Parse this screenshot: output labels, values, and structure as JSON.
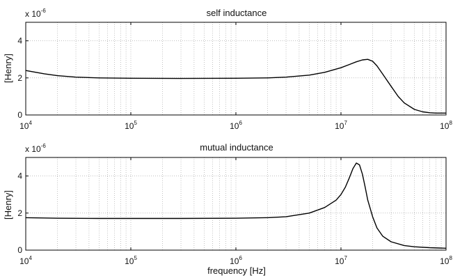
{
  "chart_data": [
    {
      "type": "line",
      "title": "self inductance",
      "ylabel": "[Henry]",
      "xlabel": "",
      "scale_label": "x 10",
      "scale_exp": "-6",
      "x_scale": "log",
      "xlim": [
        10000,
        100000000
      ],
      "ylim": [
        0,
        5
      ],
      "x_ticks": [
        {
          "value": 10000,
          "base": "10",
          "exp": "4"
        },
        {
          "value": 100000,
          "base": "10",
          "exp": "5"
        },
        {
          "value": 1000000,
          "base": "10",
          "exp": "6"
        },
        {
          "value": 10000000,
          "base": "10",
          "exp": "7"
        },
        {
          "value": 100000000,
          "base": "10",
          "exp": "8"
        }
      ],
      "y_ticks": [
        0,
        2,
        4
      ],
      "grid": true,
      "line_color": "#000000",
      "series": [
        {
          "x": [
            10000,
            15000,
            20000,
            30000,
            50000,
            100000,
            300000,
            1000000,
            2000000,
            3000000,
            5000000,
            7000000,
            10000000,
            12000000,
            14000000,
            16000000,
            18000000,
            20000000,
            22000000,
            25000000,
            30000000,
            35000000,
            40000000,
            50000000,
            60000000,
            70000000,
            80000000,
            100000000
          ],
          "y": [
            2.4,
            2.22,
            2.12,
            2.04,
            2.0,
            1.98,
            1.97,
            1.98,
            2.0,
            2.04,
            2.15,
            2.3,
            2.55,
            2.72,
            2.87,
            2.97,
            3.0,
            2.9,
            2.65,
            2.2,
            1.55,
            1.0,
            0.65,
            0.3,
            0.17,
            0.12,
            0.1,
            0.1
          ]
        }
      ]
    },
    {
      "type": "line",
      "title": "mutual inductance",
      "ylabel": "[Henry]",
      "xlabel": "frequency [Hz]",
      "scale_label": "x 10",
      "scale_exp": "-6",
      "x_scale": "log",
      "xlim": [
        10000,
        100000000
      ],
      "ylim": [
        0,
        5
      ],
      "x_ticks": [
        {
          "value": 10000,
          "base": "10",
          "exp": "4"
        },
        {
          "value": 100000,
          "base": "10",
          "exp": "5"
        },
        {
          "value": 1000000,
          "base": "10",
          "exp": "6"
        },
        {
          "value": 10000000,
          "base": "10",
          "exp": "7"
        },
        {
          "value": 100000000,
          "base": "10",
          "exp": "8"
        }
      ],
      "y_ticks": [
        0,
        2,
        4
      ],
      "grid": true,
      "line_color": "#000000",
      "series": [
        {
          "x": [
            10000,
            20000,
            50000,
            100000,
            300000,
            1000000,
            2000000,
            3000000,
            5000000,
            7000000,
            9000000,
            10000000,
            11000000,
            12000000,
            13000000,
            14000000,
            15000000,
            16000000,
            17000000,
            18000000,
            20000000,
            22000000,
            25000000,
            30000000,
            40000000,
            50000000,
            70000000,
            100000000
          ],
          "y": [
            1.75,
            1.72,
            1.71,
            1.71,
            1.71,
            1.72,
            1.75,
            1.8,
            2.0,
            2.3,
            2.7,
            3.0,
            3.4,
            3.9,
            4.4,
            4.7,
            4.6,
            4.1,
            3.4,
            2.7,
            1.8,
            1.2,
            0.75,
            0.45,
            0.25,
            0.18,
            0.13,
            0.1
          ]
        }
      ]
    }
  ]
}
